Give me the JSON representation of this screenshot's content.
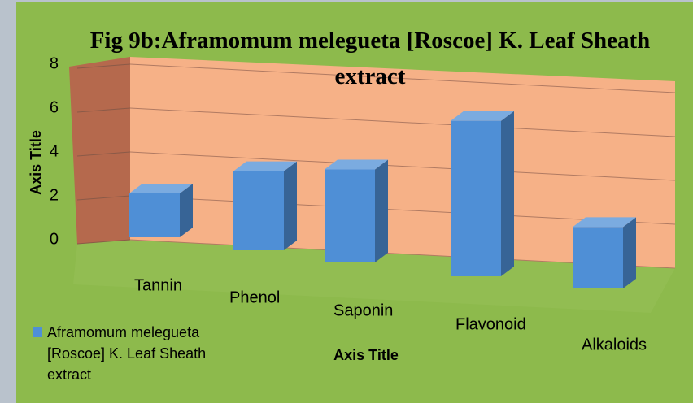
{
  "chart_data": {
    "type": "bar3d",
    "title": "Fig 9b:Aframomum melegueta [Roscoe] K. Leaf Sheath extract",
    "x_label": "Axis Title",
    "y_label": "Axis Title",
    "categories": [
      "Tannin",
      "Phenol",
      "Saponin",
      "Flavonoid",
      "Alkaloids"
    ],
    "series": [
      {
        "name": "Aframomum melegueta [Roscoe] K. Leaf Sheath extract",
        "color": "#4f8fd6",
        "values": [
          2,
          3.5,
          4,
          6.5,
          2.5
        ]
      }
    ],
    "ylim": [
      0,
      8
    ],
    "yticks": [
      0,
      2,
      4,
      6,
      8
    ],
    "grid": true,
    "legend": "bottom-left"
  }
}
